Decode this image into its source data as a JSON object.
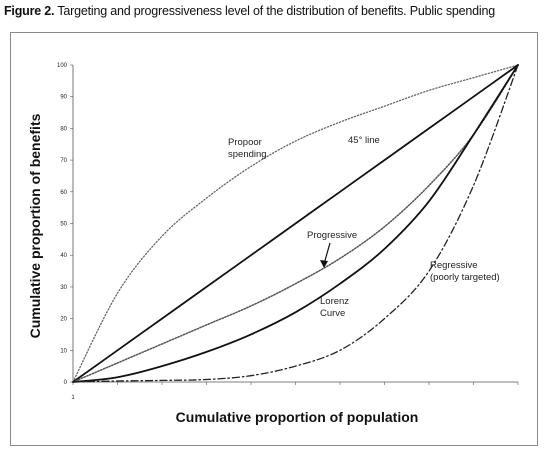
{
  "caption": {
    "label": "Figure 2.",
    "text": " Targeting and progressiveness level of the distribution of benefits. Public spending"
  },
  "chart_data": {
    "type": "line",
    "title": "",
    "xlabel": "Cumulative proportion of population",
    "ylabel": "Cumulative proportion of benefits",
    "xlim": [
      0,
      100
    ],
    "ylim": [
      0,
      100
    ],
    "yticks": [
      "0",
      "10",
      "20",
      "30",
      "40",
      "50",
      "60",
      "70",
      "80",
      "90",
      "100"
    ],
    "xtick_label": "1",
    "x": [
      0,
      10,
      20,
      30,
      40,
      50,
      60,
      70,
      80,
      90,
      100
    ],
    "series": [
      {
        "key": "propoor",
        "values": [
          0,
          28,
          46,
          58,
          68,
          76,
          82,
          87,
          92,
          96,
          100
        ]
      },
      {
        "key": "line45",
        "values": [
          0,
          10,
          20,
          30,
          40,
          50,
          60,
          70,
          80,
          90,
          100
        ]
      },
      {
        "key": "progressive",
        "values": [
          0,
          6,
          12,
          18,
          24,
          31,
          39,
          49,
          62,
          78,
          100
        ]
      },
      {
        "key": "lorenz",
        "values": [
          0,
          1.5,
          5,
          9.5,
          15,
          22,
          31,
          42,
          57,
          78,
          100
        ]
      },
      {
        "key": "regressive",
        "values": [
          0,
          0.3,
          0.5,
          0.8,
          2,
          5,
          10,
          20,
          35,
          62,
          100
        ]
      }
    ],
    "annotations": {
      "propoor": [
        "Propoor",
        "spending"
      ],
      "line45": "45° line",
      "progressive": "Progressive",
      "lorenz": [
        "Lorenz",
        "Curve"
      ],
      "regressive": [
        "Regressive",
        "(poorly targeted)"
      ]
    }
  }
}
